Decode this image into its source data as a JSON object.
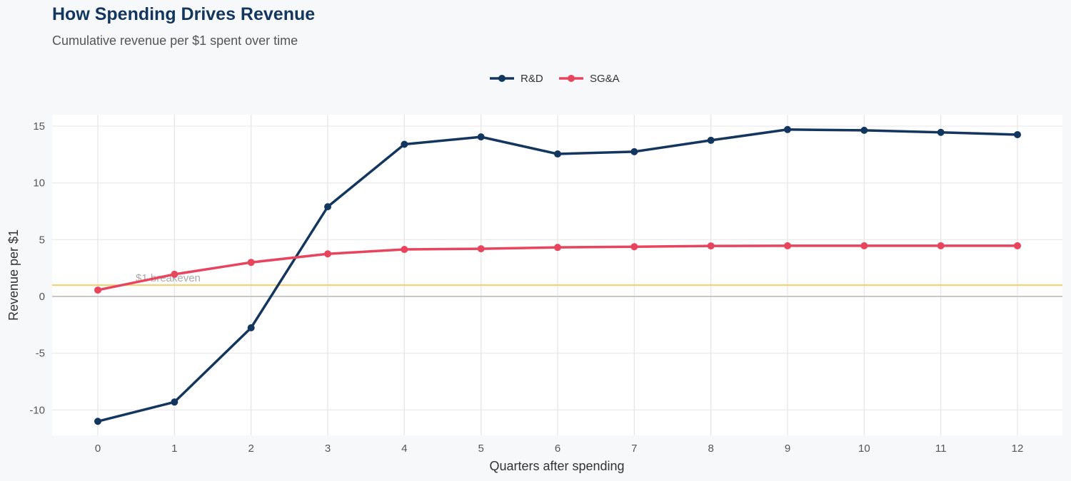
{
  "chart_data": {
    "type": "line",
    "title": "How Spending Drives Revenue",
    "subtitle": "Cumulative revenue per $1 spent over time",
    "xlabel": "Quarters after spending",
    "ylabel": "Revenue per $1",
    "x": [
      0,
      1,
      2,
      3,
      4,
      5,
      6,
      7,
      8,
      9,
      10,
      11,
      12
    ],
    "xticks": [
      "0",
      "1",
      "2",
      "3",
      "4",
      "5",
      "6",
      "7",
      "8",
      "9",
      "10",
      "11",
      "12"
    ],
    "yticks": [
      "-10",
      "-5",
      "0",
      "5",
      "10",
      "15"
    ],
    "ylim": [
      -12.2,
      16
    ],
    "xlim": [
      -0.6,
      12.6
    ],
    "grid": true,
    "legend": "top-center",
    "series": [
      {
        "name": "R&D",
        "color": "#13365f",
        "values": [
          -11.0,
          -9.3,
          -2.76,
          7.9,
          13.4,
          14.05,
          12.55,
          12.75,
          13.75,
          14.7,
          14.63,
          14.45,
          14.25
        ]
      },
      {
        "name": "SG&A",
        "color": "#e8445e",
        "values": [
          0.56,
          1.95,
          3.0,
          3.75,
          4.14,
          4.2,
          4.32,
          4.38,
          4.45,
          4.46,
          4.46,
          4.46,
          4.46
        ]
      }
    ],
    "annotations": [
      {
        "text": "$1 breakeven",
        "y": 1,
        "color": "#f5cd6a"
      }
    ]
  }
}
